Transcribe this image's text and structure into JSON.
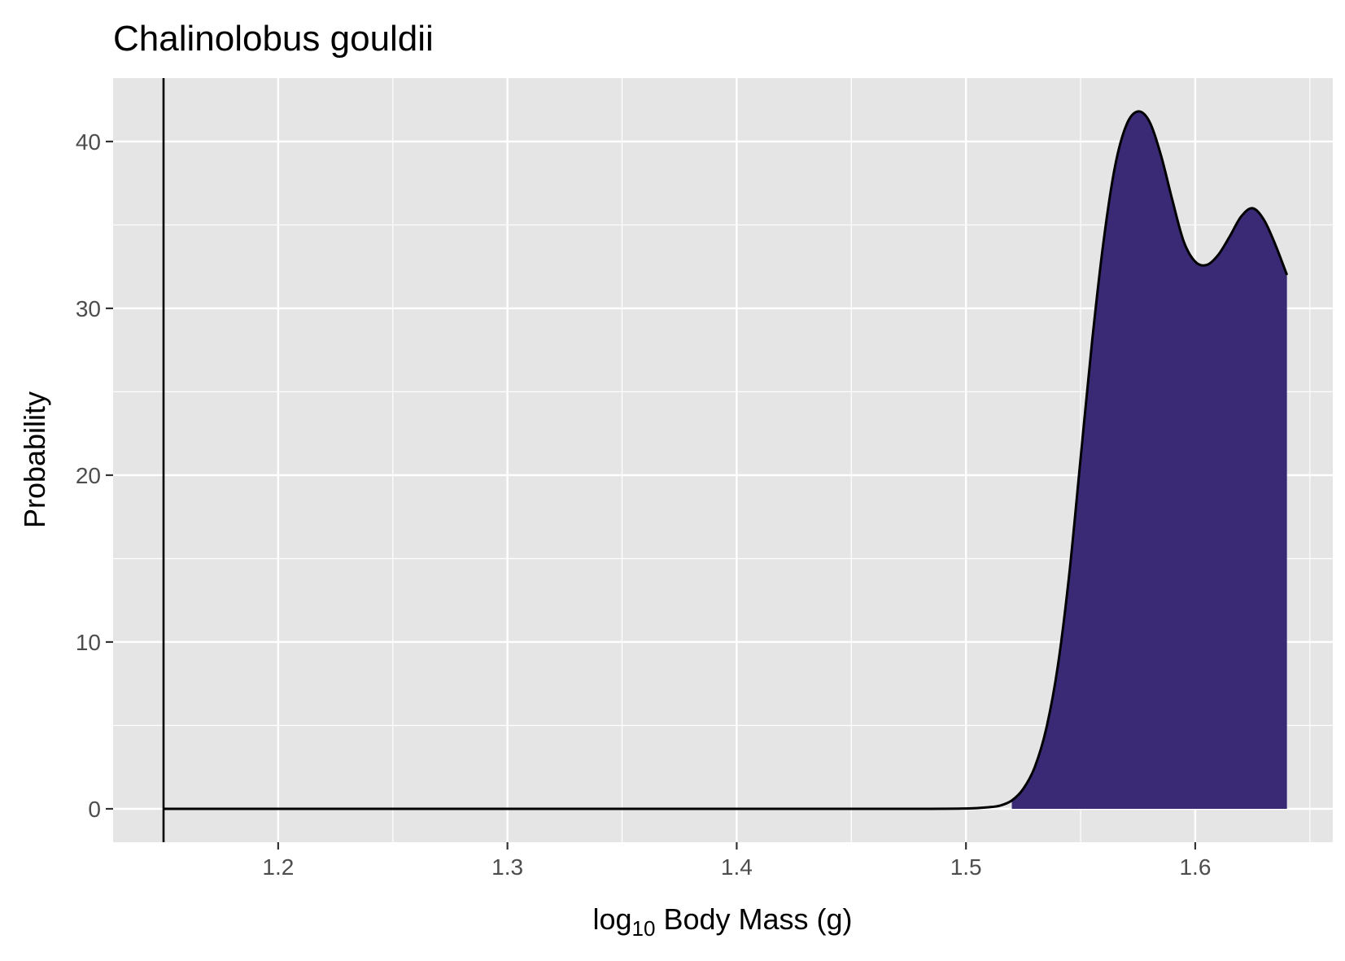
{
  "chart_data": {
    "type": "area",
    "title": "Chalinolobus gouldii",
    "xlabel": "Body Mass (g)",
    "xlabel_prefix": "log",
    "xlabel_subscript": "10",
    "ylabel": "Probability",
    "xlim": [
      1.128,
      1.66
    ],
    "ylim": [
      -2.0,
      43.8
    ],
    "x_ticks": [
      1.2,
      1.3,
      1.4,
      1.5,
      1.6
    ],
    "x_tick_labels": [
      "1.2",
      "1.3",
      "1.4",
      "1.5",
      "1.6"
    ],
    "y_ticks": [
      0,
      10,
      20,
      30,
      40
    ],
    "y_tick_labels": [
      "0",
      "10",
      "20",
      "30",
      "40"
    ],
    "grid": true,
    "panel_background": "#e5e5e5",
    "fill_color": "#3a2a76",
    "line_color": "#000000",
    "vline_x": 1.15,
    "fill_start_x": 1.52,
    "density": {
      "x": [
        1.15,
        1.2,
        1.3,
        1.4,
        1.48,
        1.5,
        1.51,
        1.515,
        1.52,
        1.525,
        1.53,
        1.535,
        1.54,
        1.545,
        1.55,
        1.555,
        1.56,
        1.565,
        1.57,
        1.575,
        1.58,
        1.585,
        1.59,
        1.595,
        1.6,
        1.605,
        1.61,
        1.615,
        1.62,
        1.625,
        1.63,
        1.635,
        1.64
      ],
      "y": [
        0,
        0,
        0,
        0,
        0,
        0.02,
        0.1,
        0.2,
        0.5,
        1.2,
        2.5,
        4.8,
        8.5,
        14.0,
        21.0,
        28.0,
        34.0,
        38.5,
        41.0,
        41.8,
        41.2,
        39.2,
        36.5,
        34.0,
        32.8,
        32.6,
        33.2,
        34.3,
        35.5,
        36.0,
        35.3,
        33.8,
        32.0
      ]
    }
  }
}
